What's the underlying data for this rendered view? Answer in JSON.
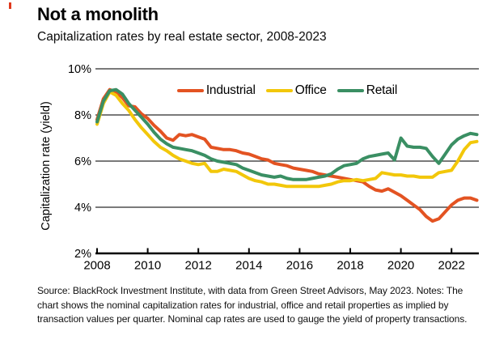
{
  "header": {
    "title": "Not a monolith",
    "subtitle": "Capitalization rates by real estate sector, 2008-2023"
  },
  "footer": {
    "source": "Source: BlackRock Investment Institute, with data from Green Street Advisors, May 2023. Notes: The chart shows the nominal capitalization rates for industrial, office and retail properties as implied by transaction values per quarter. Nominal cap rates are used to gauge the yield of property transactions."
  },
  "colors": {
    "industrial": "#e35322",
    "office": "#f2c70a",
    "retail": "#3a8f63",
    "grid": "#2a2a2a",
    "axis": "#000000",
    "accent": "#e0391d"
  },
  "chart_data": {
    "type": "line",
    "title": "Not a monolith",
    "subtitle": "Capitalization rates by real estate sector, 2008-2023",
    "xlabel": "",
    "ylabel": "Capitalization rate (yield)",
    "ylim": [
      2,
      10
    ],
    "xlim": [
      2008,
      2023.3
    ],
    "grid": "horizontal",
    "legend_position": "top-center",
    "yticks": [
      2,
      4,
      6,
      8,
      10
    ],
    "ytick_labels": [
      "2%",
      "4%",
      "6%",
      "8%",
      "10%"
    ],
    "xticks": [
      2008,
      2010,
      2012,
      2014,
      2016,
      2018,
      2020,
      2022
    ],
    "xtick_labels": [
      "2008",
      "2010",
      "2012",
      "2014",
      "2016",
      "2018",
      "2020",
      "2022"
    ],
    "x_unit": "quarter (decimal year)",
    "y_unit": "percent",
    "x": [
      2008,
      2008.25,
      2008.5,
      2008.75,
      2009,
      2009.25,
      2009.5,
      2009.75,
      2010,
      2010.25,
      2010.5,
      2010.75,
      2011,
      2011.25,
      2011.5,
      2011.75,
      2012,
      2012.25,
      2012.5,
      2012.75,
      2013,
      2013.25,
      2013.5,
      2013.75,
      2014,
      2014.25,
      2014.5,
      2014.75,
      2015,
      2015.25,
      2015.5,
      2015.75,
      2016,
      2016.25,
      2016.5,
      2016.75,
      2017,
      2017.25,
      2017.5,
      2017.75,
      2018,
      2018.25,
      2018.5,
      2018.75,
      2019,
      2019.25,
      2019.5,
      2019.75,
      2020,
      2020.25,
      2020.5,
      2020.75,
      2021,
      2021.25,
      2021.5,
      2021.75,
      2022,
      2022.25,
      2022.5,
      2022.75,
      2023
    ],
    "series": [
      {
        "name": "Industrial",
        "color": "#e35322",
        "values": [
          7.8,
          8.7,
          9.1,
          9.0,
          8.75,
          8.4,
          8.35,
          8.05,
          7.85,
          7.55,
          7.3,
          7.0,
          6.9,
          7.15,
          7.1,
          7.15,
          7.05,
          6.95,
          6.6,
          6.55,
          6.5,
          6.5,
          6.45,
          6.35,
          6.3,
          6.2,
          6.1,
          6.05,
          5.9,
          5.85,
          5.8,
          5.7,
          5.65,
          5.6,
          5.55,
          5.45,
          5.4,
          5.35,
          5.3,
          5.25,
          5.2,
          5.15,
          5.1,
          4.9,
          4.75,
          4.7,
          4.8,
          4.65,
          4.5,
          4.3,
          4.1,
          3.9,
          3.6,
          3.4,
          3.5,
          3.8,
          4.1,
          4.3,
          4.4,
          4.4,
          4.3
        ]
      },
      {
        "name": "Office",
        "color": "#f2c70a",
        "values": [
          7.6,
          8.5,
          9.0,
          8.85,
          8.5,
          8.2,
          7.8,
          7.45,
          7.15,
          6.85,
          6.6,
          6.45,
          6.25,
          6.1,
          6.0,
          5.9,
          5.85,
          5.9,
          5.55,
          5.55,
          5.65,
          5.6,
          5.55,
          5.4,
          5.25,
          5.15,
          5.1,
          5.0,
          5.0,
          4.95,
          4.9,
          4.9,
          4.9,
          4.9,
          4.9,
          4.9,
          4.95,
          5.0,
          5.1,
          5.15,
          5.15,
          5.2,
          5.15,
          5.2,
          5.25,
          5.5,
          5.45,
          5.4,
          5.4,
          5.35,
          5.35,
          5.3,
          5.3,
          5.3,
          5.5,
          5.55,
          5.6,
          6.0,
          6.5,
          6.8,
          6.85
        ]
      },
      {
        "name": "Retail",
        "color": "#3a8f63",
        "values": [
          7.7,
          8.6,
          9.05,
          9.1,
          8.9,
          8.5,
          8.2,
          7.9,
          7.6,
          7.25,
          6.95,
          6.75,
          6.6,
          6.55,
          6.5,
          6.45,
          6.35,
          6.25,
          6.1,
          6.0,
          5.95,
          5.9,
          5.85,
          5.7,
          5.6,
          5.5,
          5.4,
          5.35,
          5.3,
          5.35,
          5.25,
          5.2,
          5.2,
          5.2,
          5.25,
          5.3,
          5.35,
          5.45,
          5.65,
          5.8,
          5.85,
          5.9,
          6.1,
          6.2,
          6.25,
          6.3,
          6.35,
          6.05,
          7.0,
          6.65,
          6.6,
          6.6,
          6.55,
          6.2,
          5.9,
          6.3,
          6.7,
          6.95,
          7.1,
          7.2,
          7.15
        ]
      }
    ]
  }
}
